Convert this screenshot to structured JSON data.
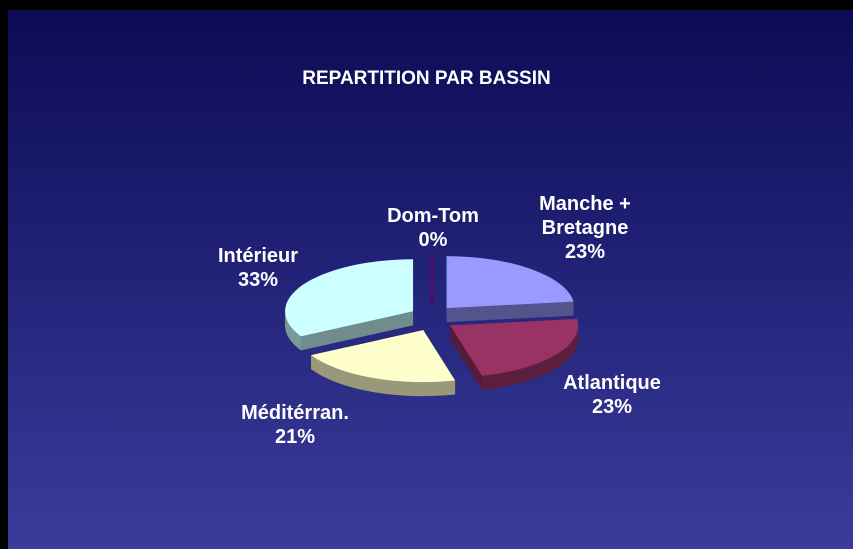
{
  "chart_data": {
    "type": "pie",
    "title": "REPARTITION PAR BASSIN",
    "categories": [
      "Manche + Bretagne",
      "Atlantique",
      "Méditérran.",
      "Intérieur",
      "Dom-Tom"
    ],
    "values": [
      23,
      23,
      21,
      33,
      0
    ],
    "value_labels": [
      "23%",
      "23%",
      "21%",
      "33%",
      "0%"
    ],
    "colors": [
      "#9999ff",
      "#993366",
      "#ffffcc",
      "#ccffff",
      "#660066"
    ]
  }
}
